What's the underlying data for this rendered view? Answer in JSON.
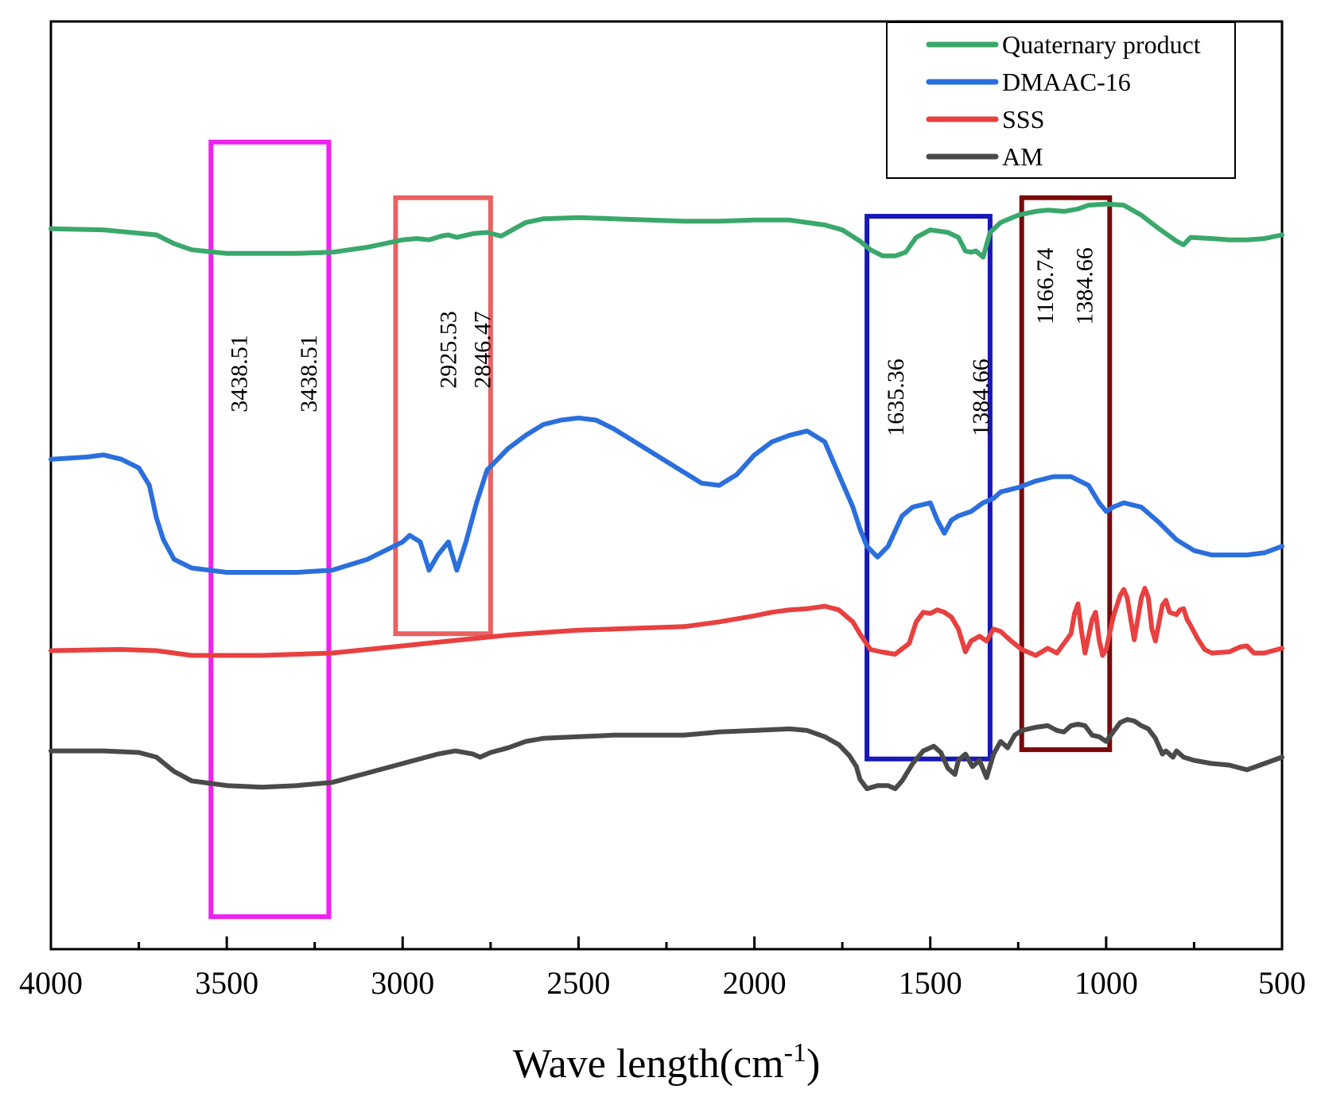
{
  "chart_data": {
    "type": "line",
    "xlabel": "Wave length(cm",
    "xlabel_sup": "-1",
    "xlabel_close": ")",
    "xlim": [
      4000,
      500
    ],
    "x_ticks": [
      4000,
      3500,
      3000,
      2500,
      2000,
      1500,
      1000,
      500
    ],
    "x_tick_labels": [
      "4000",
      "3500",
      "3000",
      "2500",
      "2000",
      "1500",
      "1000",
      "500"
    ],
    "y_axis_visible": false,
    "legend_position": "top-right",
    "series": [
      {
        "name": "Quaternary product",
        "color": "#3aa86b",
        "points": [
          [
            4000,
            85
          ],
          [
            3850,
            84
          ],
          [
            3700,
            80
          ],
          [
            3650,
            73
          ],
          [
            3600,
            68
          ],
          [
            3500,
            65
          ],
          [
            3400,
            65
          ],
          [
            3300,
            65
          ],
          [
            3200,
            66
          ],
          [
            3100,
            70
          ],
          [
            3000,
            76
          ],
          [
            2960,
            77
          ],
          [
            2925,
            76
          ],
          [
            2890,
            79
          ],
          [
            2870,
            80
          ],
          [
            2846,
            78
          ],
          [
            2800,
            81
          ],
          [
            2760,
            82
          ],
          [
            2720,
            79
          ],
          [
            2650,
            90
          ],
          [
            2600,
            93
          ],
          [
            2500,
            94
          ],
          [
            2400,
            93
          ],
          [
            2300,
            92
          ],
          [
            2200,
            91
          ],
          [
            2100,
            91
          ],
          [
            2000,
            92
          ],
          [
            1900,
            92
          ],
          [
            1800,
            88
          ],
          [
            1750,
            84
          ],
          [
            1700,
            75
          ],
          [
            1670,
            68
          ],
          [
            1635,
            63
          ],
          [
            1600,
            63
          ],
          [
            1570,
            66
          ],
          [
            1540,
            78
          ],
          [
            1500,
            84
          ],
          [
            1450,
            82
          ],
          [
            1420,
            78
          ],
          [
            1400,
            67
          ],
          [
            1384,
            66
          ],
          [
            1370,
            67
          ],
          [
            1350,
            62
          ],
          [
            1330,
            82
          ],
          [
            1300,
            90
          ],
          [
            1250,
            96
          ],
          [
            1200,
            99
          ],
          [
            1166,
            100
          ],
          [
            1120,
            99
          ],
          [
            1080,
            101
          ],
          [
            1050,
            104
          ],
          [
            1000,
            105
          ],
          [
            950,
            104
          ],
          [
            900,
            96
          ],
          [
            850,
            85
          ],
          [
            800,
            75
          ],
          [
            780,
            72
          ],
          [
            760,
            78
          ],
          [
            700,
            77
          ],
          [
            650,
            76
          ],
          [
            600,
            76
          ],
          [
            550,
            77
          ],
          [
            500,
            80
          ]
        ]
      },
      {
        "name": "DMAAC-16",
        "color": "#2b6fdc",
        "points": [
          [
            4000,
            52
          ],
          [
            3900,
            53
          ],
          [
            3850,
            54
          ],
          [
            3800,
            52
          ],
          [
            3750,
            48
          ],
          [
            3720,
            40
          ],
          [
            3700,
            25
          ],
          [
            3680,
            15
          ],
          [
            3650,
            6
          ],
          [
            3600,
            2
          ],
          [
            3500,
            0
          ],
          [
            3400,
            0
          ],
          [
            3300,
            0
          ],
          [
            3200,
            1
          ],
          [
            3100,
            6
          ],
          [
            3000,
            14
          ],
          [
            2980,
            17
          ],
          [
            2950,
            14
          ],
          [
            2925,
            1
          ],
          [
            2900,
            8
          ],
          [
            2870,
            14
          ],
          [
            2846,
            1
          ],
          [
            2820,
            14
          ],
          [
            2790,
            32
          ],
          [
            2760,
            47
          ],
          [
            2700,
            57
          ],
          [
            2650,
            63
          ],
          [
            2600,
            68
          ],
          [
            2550,
            70
          ],
          [
            2500,
            71
          ],
          [
            2450,
            70
          ],
          [
            2400,
            66
          ],
          [
            2300,
            56
          ],
          [
            2200,
            46
          ],
          [
            2150,
            41
          ],
          [
            2100,
            40
          ],
          [
            2050,
            45
          ],
          [
            2000,
            54
          ],
          [
            1950,
            60
          ],
          [
            1900,
            63
          ],
          [
            1850,
            65
          ],
          [
            1800,
            60
          ],
          [
            1760,
            45
          ],
          [
            1720,
            30
          ],
          [
            1700,
            20
          ],
          [
            1680,
            12
          ],
          [
            1650,
            7
          ],
          [
            1620,
            12
          ],
          [
            1580,
            26
          ],
          [
            1550,
            30
          ],
          [
            1500,
            32
          ],
          [
            1480,
            24
          ],
          [
            1460,
            18
          ],
          [
            1440,
            24
          ],
          [
            1420,
            26
          ],
          [
            1384,
            28
          ],
          [
            1350,
            32
          ],
          [
            1320,
            34
          ],
          [
            1300,
            37
          ],
          [
            1250,
            39
          ],
          [
            1200,
            42
          ],
          [
            1150,
            44
          ],
          [
            1100,
            44
          ],
          [
            1050,
            40
          ],
          [
            1020,
            32
          ],
          [
            1000,
            28
          ],
          [
            980,
            30
          ],
          [
            950,
            32
          ],
          [
            900,
            30
          ],
          [
            850,
            23
          ],
          [
            800,
            15
          ],
          [
            750,
            10
          ],
          [
            700,
            8
          ],
          [
            600,
            8
          ],
          [
            550,
            9
          ],
          [
            500,
            12
          ]
        ]
      },
      {
        "name": "SSS",
        "color": "#e84040",
        "points": [
          [
            4000,
            54
          ],
          [
            3800,
            55
          ],
          [
            3700,
            54
          ],
          [
            3650,
            52
          ],
          [
            3600,
            50
          ],
          [
            3500,
            50
          ],
          [
            3400,
            50
          ],
          [
            3300,
            51
          ],
          [
            3200,
            52
          ],
          [
            3100,
            55
          ],
          [
            3000,
            58
          ],
          [
            2900,
            61
          ],
          [
            2800,
            64
          ],
          [
            2700,
            67
          ],
          [
            2600,
            69
          ],
          [
            2500,
            71
          ],
          [
            2400,
            72
          ],
          [
            2300,
            73
          ],
          [
            2200,
            74
          ],
          [
            2100,
            78
          ],
          [
            2000,
            83
          ],
          [
            1950,
            86
          ],
          [
            1900,
            88
          ],
          [
            1850,
            89
          ],
          [
            1800,
            91
          ],
          [
            1760,
            88
          ],
          [
            1720,
            78
          ],
          [
            1700,
            68
          ],
          [
            1670,
            55
          ],
          [
            1640,
            53
          ],
          [
            1600,
            51
          ],
          [
            1560,
            60
          ],
          [
            1540,
            78
          ],
          [
            1520,
            86
          ],
          [
            1500,
            85
          ],
          [
            1480,
            88
          ],
          [
            1460,
            86
          ],
          [
            1440,
            82
          ],
          [
            1420,
            72
          ],
          [
            1400,
            53
          ],
          [
            1384,
            62
          ],
          [
            1360,
            66
          ],
          [
            1340,
            62
          ],
          [
            1320,
            72
          ],
          [
            1300,
            70
          ],
          [
            1270,
            62
          ],
          [
            1240,
            55
          ],
          [
            1200,
            50
          ],
          [
            1166,
            56
          ],
          [
            1140,
            52
          ],
          [
            1100,
            68
          ],
          [
            1090,
            85
          ],
          [
            1080,
            93
          ],
          [
            1070,
            70
          ],
          [
            1060,
            52
          ],
          [
            1040,
            80
          ],
          [
            1030,
            86
          ],
          [
            1020,
            63
          ],
          [
            1010,
            50
          ],
          [
            1000,
            55
          ],
          [
            980,
            82
          ],
          [
            960,
            100
          ],
          [
            950,
            105
          ],
          [
            940,
            98
          ],
          [
            930,
            80
          ],
          [
            920,
            63
          ],
          [
            900,
            98
          ],
          [
            890,
            106
          ],
          [
            880,
            98
          ],
          [
            870,
            72
          ],
          [
            860,
            62
          ],
          [
            840,
            92
          ],
          [
            830,
            96
          ],
          [
            820,
            86
          ],
          [
            800,
            84
          ],
          [
            790,
            88
          ],
          [
            780,
            89
          ],
          [
            770,
            80
          ],
          [
            760,
            75
          ],
          [
            740,
            64
          ],
          [
            720,
            55
          ],
          [
            700,
            52
          ],
          [
            650,
            53
          ],
          [
            620,
            57
          ],
          [
            600,
            58
          ],
          [
            580,
            52
          ],
          [
            550,
            52
          ],
          [
            500,
            56
          ]
        ]
      },
      {
        "name": "AM",
        "color": "#4a4a4a",
        "points": [
          [
            4000,
            86
          ],
          [
            3850,
            86
          ],
          [
            3750,
            85
          ],
          [
            3700,
            82
          ],
          [
            3650,
            73
          ],
          [
            3600,
            67
          ],
          [
            3500,
            64
          ],
          [
            3400,
            63
          ],
          [
            3300,
            64
          ],
          [
            3200,
            66
          ],
          [
            3100,
            72
          ],
          [
            3000,
            78
          ],
          [
            2950,
            81
          ],
          [
            2900,
            84
          ],
          [
            2850,
            86
          ],
          [
            2800,
            84
          ],
          [
            2780,
            82
          ],
          [
            2750,
            85
          ],
          [
            2700,
            88
          ],
          [
            2650,
            92
          ],
          [
            2600,
            94
          ],
          [
            2500,
            95
          ],
          [
            2400,
            96
          ],
          [
            2300,
            96
          ],
          [
            2200,
            96
          ],
          [
            2100,
            98
          ],
          [
            2000,
            99
          ],
          [
            1900,
            100
          ],
          [
            1850,
            99
          ],
          [
            1800,
            95
          ],
          [
            1760,
            90
          ],
          [
            1730,
            83
          ],
          [
            1710,
            76
          ],
          [
            1700,
            68
          ],
          [
            1680,
            62
          ],
          [
            1650,
            64
          ],
          [
            1620,
            64
          ],
          [
            1600,
            62
          ],
          [
            1580,
            67
          ],
          [
            1550,
            78
          ],
          [
            1520,
            86
          ],
          [
            1490,
            89
          ],
          [
            1470,
            85
          ],
          [
            1450,
            75
          ],
          [
            1430,
            71
          ],
          [
            1420,
            80
          ],
          [
            1400,
            84
          ],
          [
            1380,
            76
          ],
          [
            1360,
            80
          ],
          [
            1340,
            69
          ],
          [
            1320,
            84
          ],
          [
            1300,
            92
          ],
          [
            1280,
            88
          ],
          [
            1260,
            96
          ],
          [
            1240,
            99
          ],
          [
            1200,
            101
          ],
          [
            1166,
            102
          ],
          [
            1140,
            99
          ],
          [
            1120,
            98
          ],
          [
            1100,
            102
          ],
          [
            1080,
            103
          ],
          [
            1060,
            102
          ],
          [
            1040,
            96
          ],
          [
            1020,
            95
          ],
          [
            1000,
            92
          ],
          [
            980,
            98
          ],
          [
            960,
            104
          ],
          [
            940,
            106
          ],
          [
            920,
            105
          ],
          [
            900,
            102
          ],
          [
            880,
            100
          ],
          [
            860,
            94
          ],
          [
            840,
            84
          ],
          [
            830,
            86
          ],
          [
            810,
            82
          ],
          [
            800,
            86
          ],
          [
            780,
            82
          ],
          [
            750,
            80
          ],
          [
            700,
            78
          ],
          [
            650,
            77
          ],
          [
            600,
            74
          ],
          [
            550,
            78
          ],
          [
            500,
            82
          ]
        ]
      }
    ],
    "annotation_boxes": [
      {
        "x_from": 3545,
        "x_to": 3210,
        "y_top_frac": 0.13,
        "y_bottom_frac": 0.965,
        "color": "#ee22ee",
        "labels": [
          "3438.51",
          "3438.51"
        ]
      },
      {
        "x_from": 3020,
        "x_to": 2750,
        "y_top_frac": 0.19,
        "y_bottom_frac": 0.66,
        "color": "#e86262",
        "labels": [
          "2925.53",
          "2846.47"
        ]
      },
      {
        "x_from": 1680,
        "x_to": 1330,
        "y_top_frac": 0.21,
        "y_bottom_frac": 0.795,
        "color": "#1818b8",
        "labels": [
          "1635.36",
          "1384.66"
        ]
      },
      {
        "x_from": 1240,
        "x_to": 990,
        "y_top_frac": 0.19,
        "y_bottom_frac": 0.785,
        "color": "#7a0a0a",
        "labels": [
          "1166.74",
          "1384.66"
        ]
      }
    ]
  }
}
